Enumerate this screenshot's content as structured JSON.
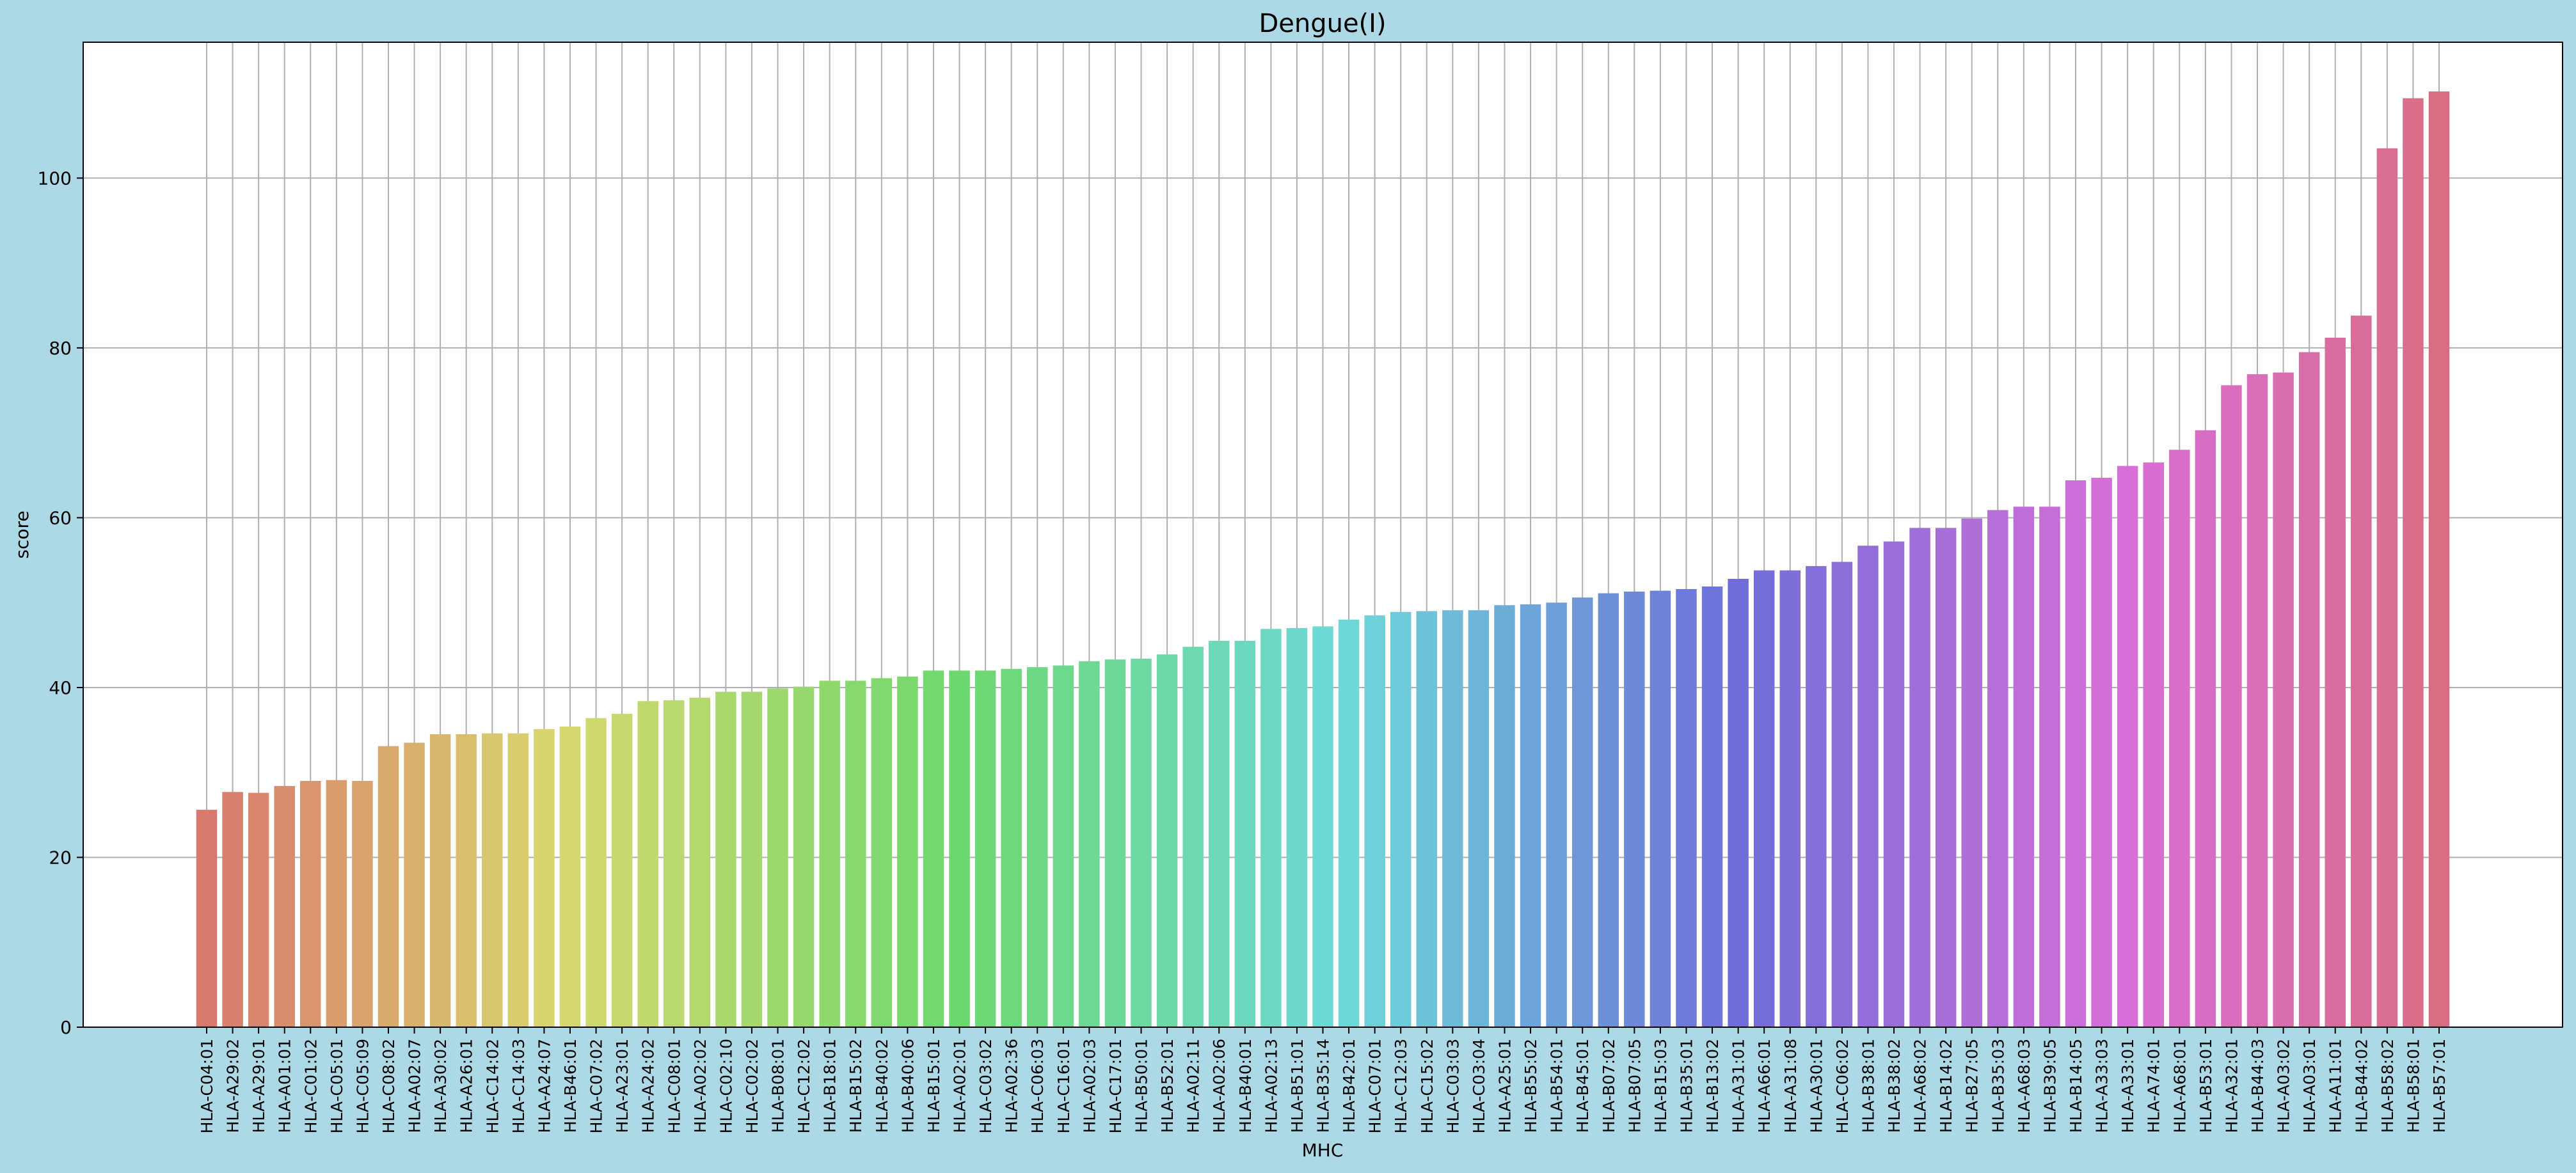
{
  "chart_data": {
    "type": "bar",
    "title": "Dengue(I)",
    "xlabel": "MHC",
    "ylabel": "score",
    "ylim": [
      0,
      116
    ],
    "yticks": [
      0,
      20,
      40,
      60,
      80,
      100
    ],
    "grid": true,
    "background": "#add8e6",
    "categories": [
      "HLA-C04:01",
      "HLA-A29:02",
      "HLA-A29:01",
      "HLA-A01:01",
      "HLA-C01:02",
      "HLA-C05:01",
      "HLA-C05:09",
      "HLA-C08:02",
      "HLA-A02:07",
      "HLA-A30:02",
      "HLA-A26:01",
      "HLA-C14:02",
      "HLA-C14:03",
      "HLA-A24:07",
      "HLA-B46:01",
      "HLA-C07:02",
      "HLA-A23:01",
      "HLA-A24:02",
      "HLA-C08:01",
      "HLA-A02:02",
      "HLA-C02:10",
      "HLA-C02:02",
      "HLA-B08:01",
      "HLA-C12:02",
      "HLA-B18:01",
      "HLA-B15:02",
      "HLA-B40:02",
      "HLA-B40:06",
      "HLA-B15:01",
      "HLA-A02:01",
      "HLA-C03:02",
      "HLA-A02:36",
      "HLA-C06:03",
      "HLA-C16:01",
      "HLA-A02:03",
      "HLA-C17:01",
      "HLA-B50:01",
      "HLA-B52:01",
      "HLA-A02:11",
      "HLA-A02:06",
      "HLA-B40:01",
      "HLA-A02:13",
      "HLA-B51:01",
      "HLA-B35:14",
      "HLA-B42:01",
      "HLA-C07:01",
      "HLA-C12:03",
      "HLA-C15:02",
      "HLA-C03:03",
      "HLA-C03:04",
      "HLA-A25:01",
      "HLA-B55:02",
      "HLA-B54:01",
      "HLA-B45:01",
      "HLA-B07:02",
      "HLA-B07:05",
      "HLA-B15:03",
      "HLA-B35:01",
      "HLA-B13:02",
      "HLA-A31:01",
      "HLA-A66:01",
      "HLA-A31:08",
      "HLA-A30:01",
      "HLA-C06:02",
      "HLA-B38:01",
      "HLA-B38:02",
      "HLA-A68:02",
      "HLA-B14:02",
      "HLA-B27:05",
      "HLA-B35:03",
      "HLA-A68:03",
      "HLA-B39:05",
      "HLA-B14:05",
      "HLA-A33:03",
      "HLA-A33:01",
      "HLA-A74:01",
      "HLA-A68:01",
      "HLA-B53:01",
      "HLA-A32:01",
      "HLA-B44:03",
      "HLA-A03:02",
      "HLA-A03:01",
      "HLA-A11:01",
      "HLA-B44:02",
      "HLA-B58:02",
      "HLA-B58:01",
      "HLA-B57:01"
    ],
    "values": [
      25.6,
      27.7,
      27.6,
      28.4,
      29.0,
      29.1,
      29.0,
      33.1,
      33.5,
      34.5,
      34.5,
      34.6,
      34.6,
      35.1,
      35.4,
      36.4,
      36.9,
      38.4,
      38.5,
      38.8,
      39.5,
      39.5,
      39.9,
      40.1,
      40.8,
      40.8,
      41.1,
      41.3,
      42.0,
      42.0,
      42.0,
      42.2,
      42.4,
      42.6,
      43.1,
      43.3,
      43.4,
      43.9,
      44.8,
      45.5,
      45.5,
      46.9,
      47.0,
      47.2,
      48.0,
      48.5,
      48.9,
      49.0,
      49.1,
      49.1,
      49.7,
      49.8,
      50.0,
      50.6,
      51.1,
      51.3,
      51.4,
      51.6,
      51.9,
      52.8,
      53.8,
      53.8,
      54.3,
      54.8,
      56.7,
      57.2,
      58.8,
      58.8,
      59.9,
      60.9,
      61.3,
      61.3,
      64.4,
      64.7,
      66.1,
      66.5,
      68.0,
      70.3,
      75.6,
      76.9,
      77.1,
      79.5,
      81.2,
      83.8,
      103.5,
      109.4,
      110.2
    ],
    "palette_hue_start": 6,
    "palette_hue_end": 348,
    "palette_saturation": 58,
    "palette_lightness": 64
  }
}
